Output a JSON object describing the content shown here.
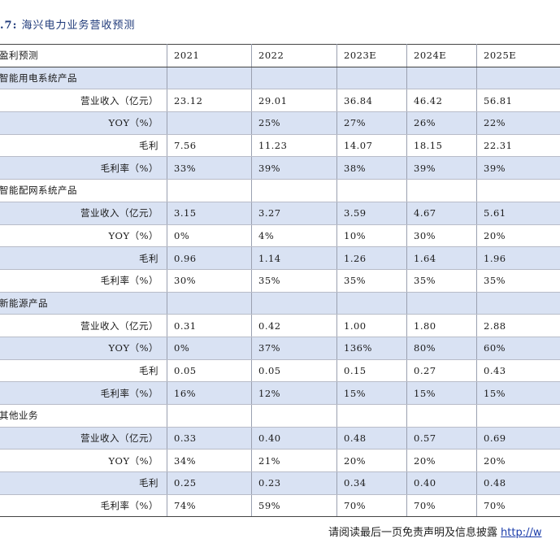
{
  "caption": {
    "num": ".7:",
    "title": "海兴电力业务营收预测"
  },
  "header": [
    "盈利预测",
    "2021",
    "2022",
    "2023E",
    "2024E",
    "2025E"
  ],
  "rows": [
    {
      "label": "智能用电系统产品",
      "section": true,
      "shade": true,
      "values": [
        "",
        "",
        "",
        "",
        ""
      ]
    },
    {
      "label": "营业收入（亿元）",
      "shade": false,
      "values": [
        "23.12",
        "29.01",
        "36.84",
        "46.42",
        "56.81"
      ]
    },
    {
      "label": "YOY（%）",
      "shade": true,
      "values": [
        "",
        "25%",
        "27%",
        "26%",
        "22%"
      ]
    },
    {
      "label": "毛利",
      "shade": false,
      "values": [
        "7.56",
        "11.23",
        "14.07",
        "18.15",
        "22.31"
      ]
    },
    {
      "label": "毛利率（%）",
      "shade": true,
      "values": [
        "33%",
        "39%",
        "38%",
        "39%",
        "39%"
      ]
    },
    {
      "label": "智能配网系统产品",
      "section": true,
      "shade": false,
      "values": [
        "",
        "",
        "",
        "",
        ""
      ]
    },
    {
      "label": "营业收入（亿元）",
      "shade": true,
      "values": [
        "3.15",
        "3.27",
        "3.59",
        "4.67",
        "5.61"
      ]
    },
    {
      "label": "YOY（%）",
      "shade": false,
      "values": [
        "0%",
        "4%",
        "10%",
        "30%",
        "20%"
      ]
    },
    {
      "label": "毛利",
      "shade": true,
      "values": [
        "0.96",
        "1.14",
        "1.26",
        "1.64",
        "1.96"
      ]
    },
    {
      "label": "毛利率（%）",
      "shade": false,
      "values": [
        "30%",
        "35%",
        "35%",
        "35%",
        "35%"
      ]
    },
    {
      "label": "新能源产品",
      "section": true,
      "shade": true,
      "values": [
        "",
        "",
        "",
        "",
        ""
      ]
    },
    {
      "label": "营业收入（亿元）",
      "shade": false,
      "values": [
        "0.31",
        "0.42",
        "1.00",
        "1.80",
        "2.88"
      ]
    },
    {
      "label": "YOY（%）",
      "shade": true,
      "values": [
        "0%",
        "37%",
        "136%",
        "80%",
        "60%"
      ]
    },
    {
      "label": "毛利",
      "shade": false,
      "values": [
        "0.05",
        "0.05",
        "0.15",
        "0.27",
        "0.43"
      ]
    },
    {
      "label": "毛利率（%）",
      "shade": true,
      "values": [
        "16%",
        "12%",
        "15%",
        "15%",
        "15%"
      ]
    },
    {
      "label": "其他业务",
      "section": true,
      "shade": false,
      "values": [
        "",
        "",
        "",
        "",
        ""
      ]
    },
    {
      "label": "营业收入（亿元）",
      "shade": true,
      "values": [
        "0.33",
        "0.40",
        "0.48",
        "0.57",
        "0.69"
      ]
    },
    {
      "label": "YOY（%）",
      "shade": false,
      "values": [
        "34%",
        "21%",
        "20%",
        "20%",
        "20%"
      ]
    },
    {
      "label": "毛利",
      "shade": true,
      "values": [
        "0.25",
        "0.23",
        "0.34",
        "0.40",
        "0.48"
      ]
    },
    {
      "label": "毛利率（%）",
      "shade": false,
      "values": [
        "74%",
        "59%",
        "70%",
        "70%",
        "70%"
      ]
    }
  ],
  "footer": {
    "text": "请阅读最后一页免责声明及信息披露",
    "link": "http://w"
  }
}
